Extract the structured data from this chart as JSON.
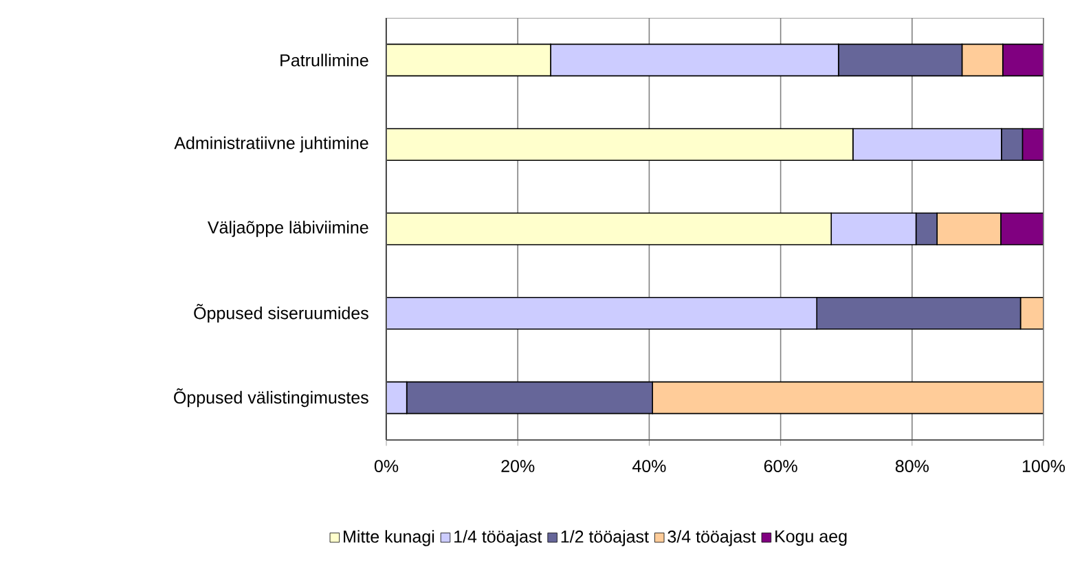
{
  "chart_data": {
    "type": "bar",
    "orientation": "horizontal",
    "stacked": true,
    "categories": [
      "Patrullimine",
      "Administratiivne juhtimine",
      "Väljaõppe läbiviimine",
      "Õppused siseruumides",
      "Õppused välistingimustes"
    ],
    "series": [
      {
        "name": "Mitte kunagi",
        "color": "#ffffcc",
        "values": [
          25,
          71,
          67.7,
          0,
          0
        ]
      },
      {
        "name": "1/4 tööajast",
        "color": "#ccccff",
        "values": [
          43.8,
          22.6,
          12.9,
          65.5,
          3.1
        ]
      },
      {
        "name": "1/2 tööajast",
        "color": "#666699",
        "values": [
          18.8,
          3.2,
          3.2,
          31,
          37.4
        ]
      },
      {
        "name": "3/4 tööajast",
        "color": "#ffcc99",
        "values": [
          6.2,
          0,
          9.7,
          3.5,
          59.5
        ]
      },
      {
        "name": "Kogu aeg",
        "color": "#800080",
        "values": [
          6.2,
          3.2,
          6.5,
          0,
          0
        ]
      }
    ],
    "xlim": [
      0,
      100
    ],
    "xticks": [
      {
        "value": 0,
        "label": "0%"
      },
      {
        "value": 20,
        "label": "20%"
      },
      {
        "value": 40,
        "label": "40%"
      },
      {
        "value": 60,
        "label": "60%"
      },
      {
        "value": 80,
        "label": "80%"
      },
      {
        "value": 100,
        "label": "100%"
      }
    ],
    "grid": "x",
    "legend": "bottom"
  }
}
